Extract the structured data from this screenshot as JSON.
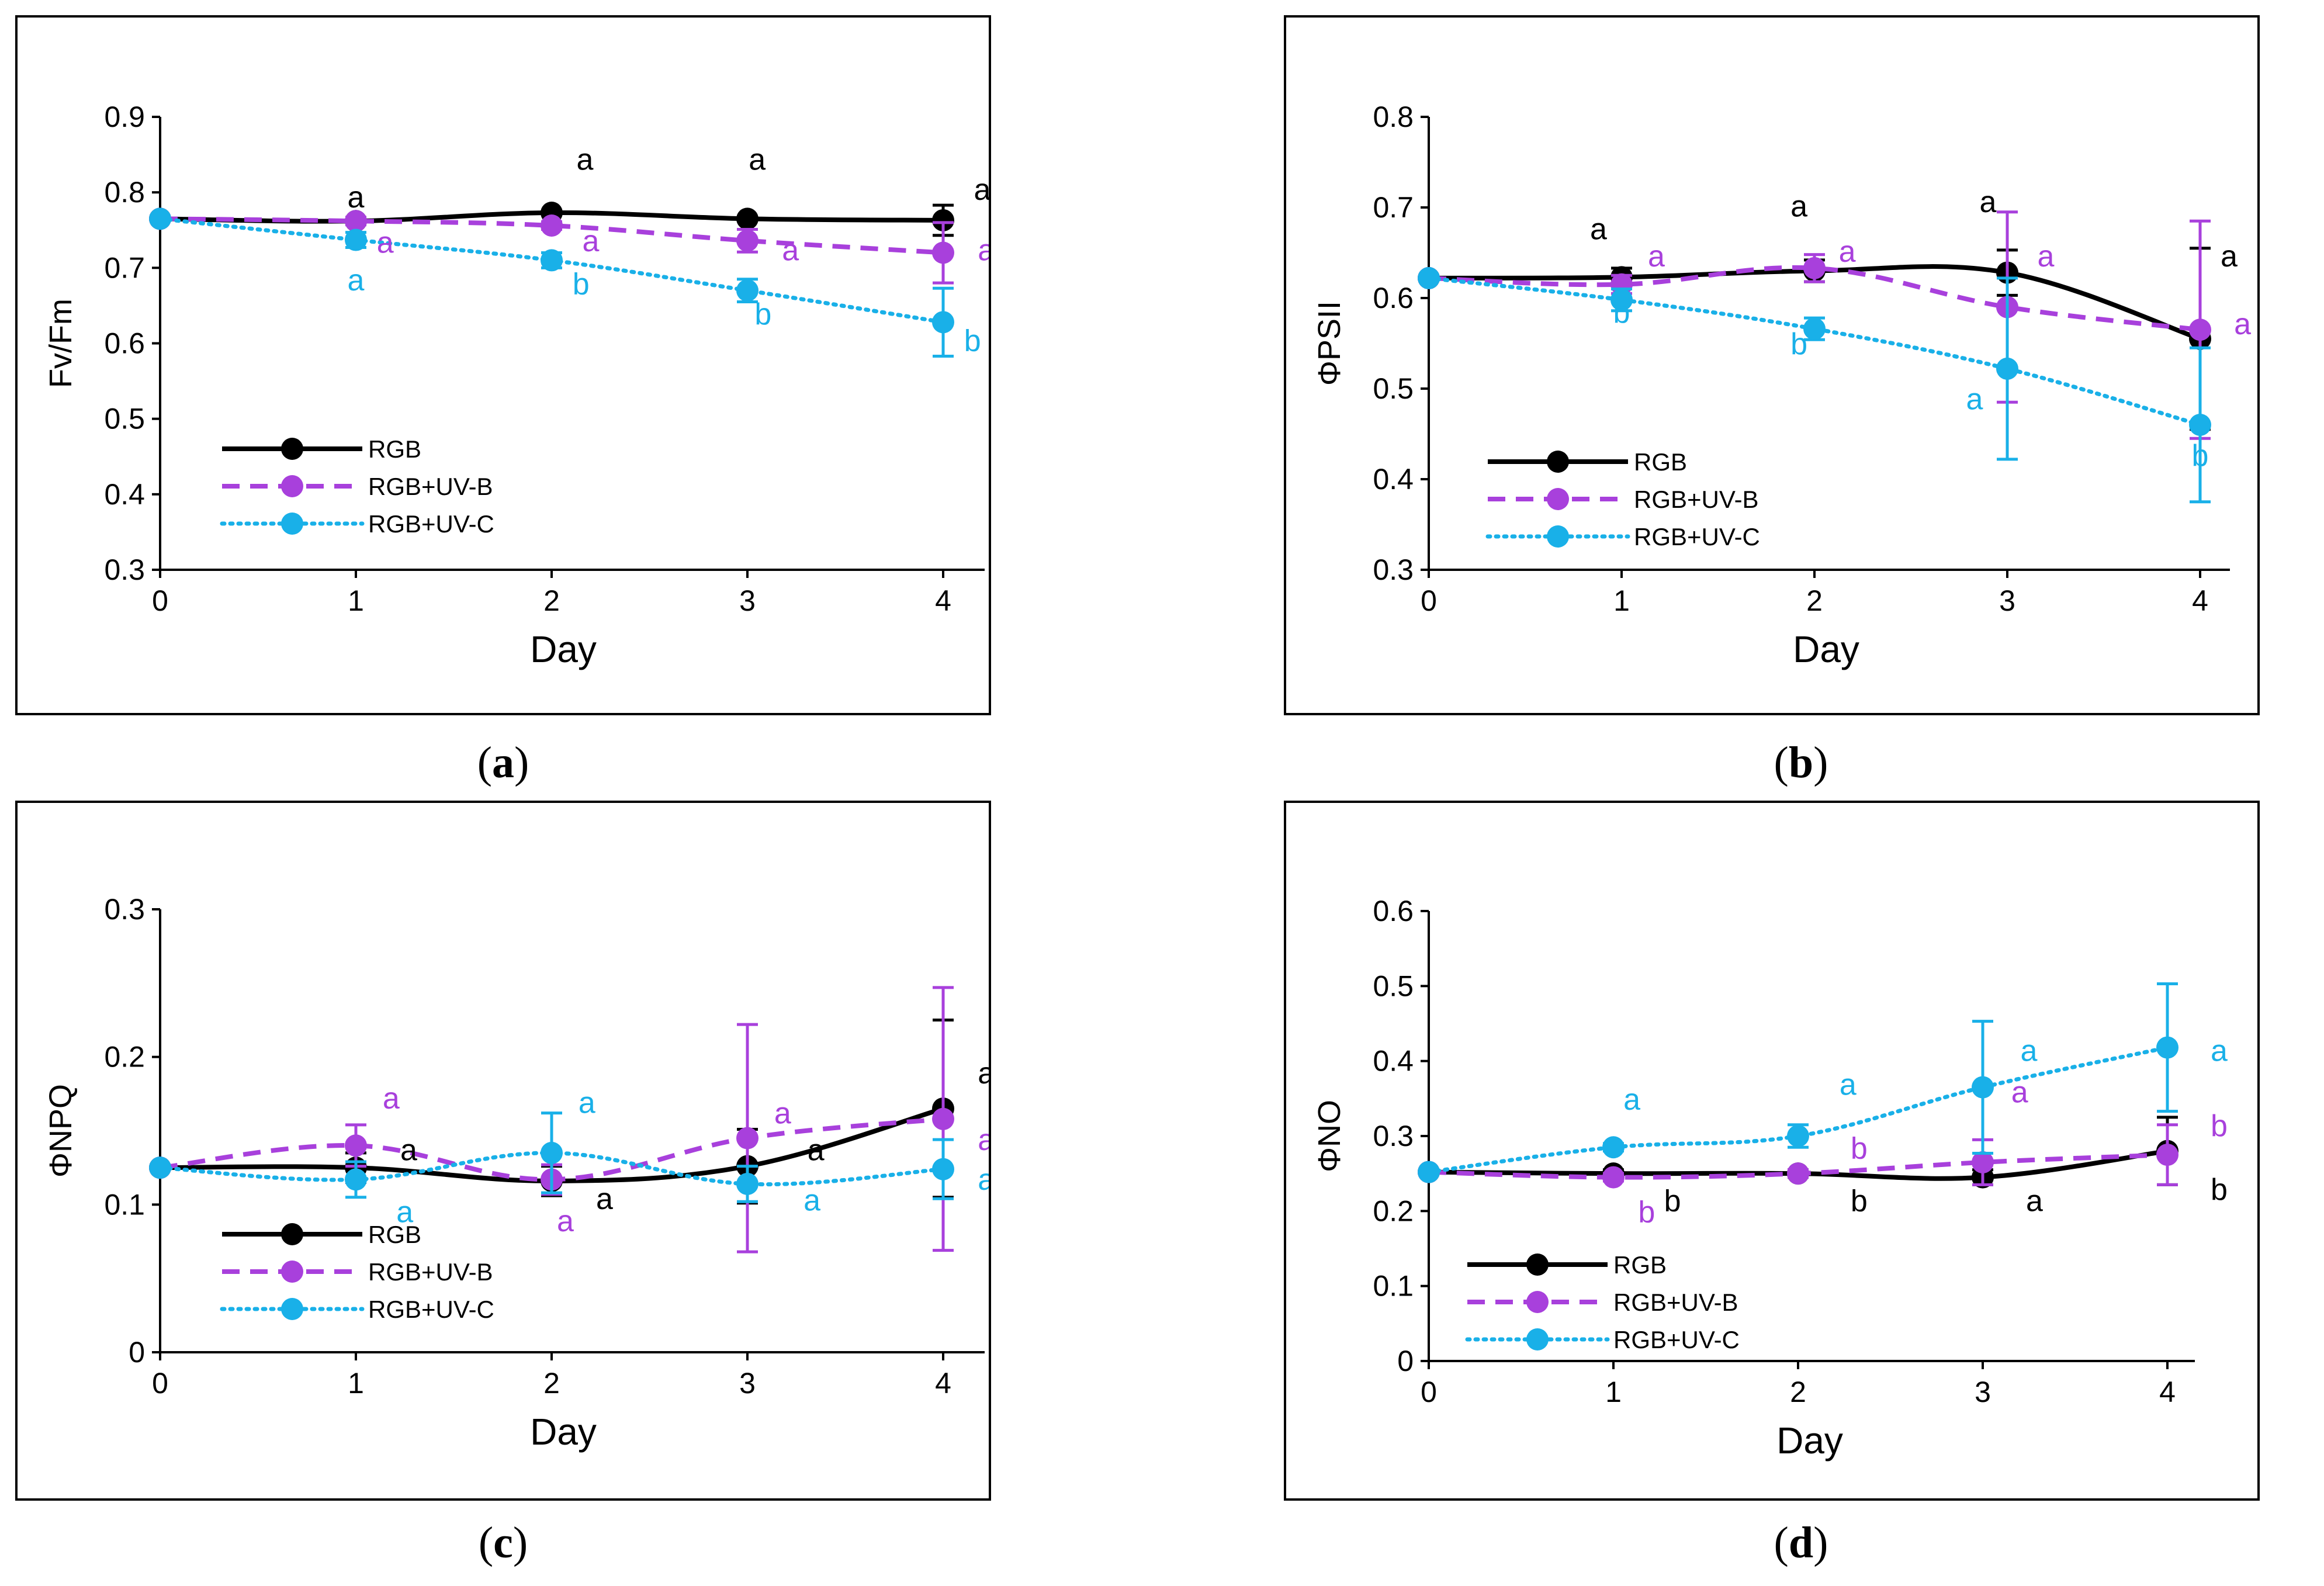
{
  "colors": {
    "RGB": "#000000",
    "RGB+UV-B": "#a840dc",
    "RGB+UV-C": "#19b0e8"
  },
  "chart_data": [
    {
      "type": "line",
      "panel_label": "a",
      "caption": {
        "open": "(",
        "label": "a",
        "close": ")"
      },
      "ylabel": "Fv/Fm",
      "xlabel": "Day",
      "x": [
        0,
        1,
        2,
        3,
        4
      ],
      "ylim": [
        0.3,
        0.9
      ],
      "yticks": [
        0.3,
        0.4,
        0.5,
        0.6,
        0.7,
        0.8,
        0.9
      ],
      "ytick_labels": [
        "0.3",
        "0.4",
        "0.5",
        "0.6",
        "0.7",
        "0.8",
        "0.9"
      ],
      "xtick_labels": [
        "0",
        "1",
        "2",
        "3",
        "4"
      ],
      "legend": [
        "RGB",
        "RGB+UV-B",
        "RGB+UV-C"
      ],
      "series": [
        {
          "name": "RGB",
          "style": "solid",
          "values": [
            0.765,
            0.762,
            0.773,
            0.765,
            0.763
          ],
          "errors": [
            0,
            0,
            0,
            0,
            0.02
          ],
          "letters": [
            "",
            "a",
            "a",
            "a",
            "a"
          ],
          "letter_pos": [
            null,
            [
              1.0,
              0.78
            ],
            [
              2.17,
              0.83
            ],
            [
              3.05,
              0.83
            ],
            [
              4.2,
              0.79
            ]
          ]
        },
        {
          "name": "RGB+UV-B",
          "style": "dashed",
          "values": [
            0.765,
            0.762,
            0.756,
            0.736,
            0.72
          ],
          "errors": [
            0,
            0.005,
            0.005,
            0.015,
            0.04
          ],
          "letters": [
            "",
            "a",
            "a",
            "a",
            "a"
          ],
          "letter_pos": [
            null,
            [
              1.15,
              0.72
            ],
            [
              2.2,
              0.722
            ],
            [
              3.22,
              0.71
            ],
            [
              4.22,
              0.71
            ]
          ]
        },
        {
          "name": "RGB+UV-C",
          "style": "dotted",
          "values": [
            0.765,
            0.737,
            0.71,
            0.67,
            0.628
          ],
          "errors": [
            0,
            0.01,
            0.01,
            0.015,
            0.045
          ],
          "letters": [
            "",
            "a",
            "b",
            "b",
            "b"
          ],
          "letter_pos": [
            null,
            [
              1.0,
              0.67
            ],
            [
              2.15,
              0.665
            ],
            [
              3.08,
              0.625
            ],
            [
              4.15,
              0.59
            ]
          ]
        }
      ]
    },
    {
      "type": "line",
      "panel_label": "b",
      "caption": {
        "open": "(",
        "label": "b",
        "close": ")"
      },
      "ylabel": "ΦPSII",
      "xlabel": "Day",
      "x": [
        0,
        1,
        2,
        3,
        4
      ],
      "ylim": [
        0.3,
        0.8
      ],
      "yticks": [
        0.3,
        0.4,
        0.5,
        0.6,
        0.7,
        0.8
      ],
      "ytick_labels": [
        "0.3",
        "0.4",
        "0.5",
        "0.6",
        "0.7",
        "0.8"
      ],
      "xtick_labels": [
        "0",
        "1",
        "2",
        "3",
        "4"
      ],
      "legend": [
        "RGB",
        "RGB+UV-B",
        "RGB+UV-C"
      ],
      "series": [
        {
          "name": "RGB",
          "style": "solid",
          "values": [
            0.622,
            0.623,
            0.63,
            0.628,
            0.555
          ],
          "errors": [
            0,
            0.01,
            0.012,
            0.025,
            0.1
          ],
          "letters": [
            "",
            "a",
            "a",
            "a",
            "a"
          ],
          "letter_pos": [
            null,
            [
              0.88,
              0.665
            ],
            [
              1.92,
              0.69
            ],
            [
              2.9,
              0.695
            ],
            [
              4.15,
              0.635
            ]
          ]
        },
        {
          "name": "RGB+UV-B",
          "style": "dashed",
          "values": [
            0.622,
            0.615,
            0.633,
            0.59,
            0.565
          ],
          "errors": [
            0,
            0.01,
            0.015,
            0.105,
            0.12
          ],
          "letters": [
            "",
            "a",
            "a",
            "a",
            "a"
          ],
          "letter_pos": [
            null,
            [
              1.18,
              0.635
            ],
            [
              2.17,
              0.64
            ],
            [
              3.2,
              0.635
            ],
            [
              4.22,
              0.56
            ]
          ]
        },
        {
          "name": "RGB+UV-C",
          "style": "dotted",
          "values": [
            0.622,
            0.598,
            0.566,
            0.522,
            0.46
          ],
          "errors": [
            0,
            0.012,
            0.012,
            0.1,
            0.085
          ],
          "letters": [
            "",
            "b",
            "b",
            "a",
            "b"
          ],
          "letter_pos": [
            null,
            [
              1.0,
              0.573
            ],
            [
              1.92,
              0.538
            ],
            [
              2.83,
              0.477
            ],
            [
              4.0,
              0.415
            ]
          ]
        }
      ]
    },
    {
      "type": "line",
      "panel_label": "c",
      "caption": {
        "open": "(",
        "label": "c",
        "close": ")"
      },
      "ylabel": "ΦNPQ",
      "xlabel": "Day",
      "x": [
        0,
        1,
        2,
        3,
        4
      ],
      "ylim": [
        0,
        0.3
      ],
      "yticks": [
        0,
        0.1,
        0.2,
        0.3
      ],
      "ytick_labels": [
        "0",
        "0.1",
        "0.2",
        "0.3"
      ],
      "xtick_labels": [
        "0",
        "1",
        "2",
        "3",
        "4"
      ],
      "legend": [
        "RGB",
        "RGB+UV-B",
        "RGB+UV-C"
      ],
      "series": [
        {
          "name": "RGB",
          "style": "solid",
          "values": [
            0.125,
            0.125,
            0.116,
            0.126,
            0.165
          ],
          "errors": [
            0,
            0.01,
            0.01,
            0.025,
            0.06
          ],
          "letters": [
            "",
            "a",
            "a",
            "a",
            "a"
          ],
          "letter_pos": [
            null,
            [
              1.27,
              0.13
            ],
            [
              2.27,
              0.097
            ],
            [
              3.35,
              0.13
            ],
            [
              4.22,
              0.182
            ]
          ]
        },
        {
          "name": "RGB+UV-B",
          "style": "dashed",
          "values": [
            0.125,
            0.14,
            0.117,
            0.145,
            0.158
          ],
          "errors": [
            0,
            0.014,
            0.01,
            0.077,
            0.089
          ],
          "letters": [
            "",
            "a",
            "a",
            "a",
            "a"
          ],
          "letter_pos": [
            null,
            [
              1.18,
              0.165
            ],
            [
              2.07,
              0.082
            ],
            [
              3.18,
              0.155
            ],
            [
              4.22,
              0.137
            ]
          ]
        },
        {
          "name": "RGB+UV-C",
          "style": "dotted",
          "values": [
            0.125,
            0.117,
            0.135,
            0.114,
            0.124
          ],
          "errors": [
            0,
            0.012,
            0.027,
            0.012,
            0.02
          ],
          "letters": [
            "",
            "a",
            "a",
            "a",
            "a"
          ],
          "letter_pos": [
            null,
            [
              1.25,
              0.088
            ],
            [
              2.18,
              0.162
            ],
            [
              3.33,
              0.096
            ],
            [
              4.22,
              0.11
            ]
          ]
        }
      ]
    },
    {
      "type": "line",
      "panel_label": "d",
      "caption": {
        "open": "(",
        "label": "d",
        "close": ")"
      },
      "ylabel": "ΦNO",
      "xlabel": "Day",
      "x": [
        0,
        1,
        2,
        3,
        4
      ],
      "ylim": [
        0,
        0.6
      ],
      "yticks": [
        0,
        0.1,
        0.2,
        0.3,
        0.4,
        0.5,
        0.6
      ],
      "ytick_labels": [
        "0",
        "0.1",
        "0.2",
        "0.3",
        "0.4",
        "0.5",
        "0.6"
      ],
      "xtick_labels": [
        "0",
        "1",
        "2",
        "3",
        "4"
      ],
      "legend": [
        "RGB",
        "RGB+UV-B",
        "RGB+UV-C"
      ],
      "series": [
        {
          "name": "RGB",
          "style": "solid",
          "values": [
            0.252,
            0.25,
            0.25,
            0.245,
            0.28
          ],
          "errors": [
            0,
            0.005,
            0.005,
            0.01,
            0.045
          ],
          "letters": [
            "",
            "b",
            "b",
            "a",
            "b"
          ],
          "letter_pos": [
            null,
            [
              1.32,
              0.2
            ],
            [
              2.33,
              0.2
            ],
            [
              3.28,
              0.2
            ],
            [
              4.28,
              0.215
            ]
          ]
        },
        {
          "name": "RGB+UV-B",
          "style": "dashed",
          "values": [
            0.252,
            0.245,
            0.25,
            0.265,
            0.275
          ],
          "errors": [
            0,
            0.005,
            0.005,
            0.03,
            0.04
          ],
          "letters": [
            "",
            "b",
            "b",
            "a",
            "b"
          ],
          "letter_pos": [
            null,
            [
              1.18,
              0.185
            ],
            [
              2.33,
              0.27
            ],
            [
              3.2,
              0.345
            ],
            [
              4.28,
              0.3
            ]
          ]
        },
        {
          "name": "RGB+UV-C",
          "style": "dotted",
          "values": [
            0.252,
            0.285,
            0.3,
            0.365,
            0.418
          ],
          "errors": [
            0,
            0.005,
            0.015,
            0.088,
            0.085
          ],
          "letters": [
            "",
            "a",
            "a",
            "a",
            "a"
          ],
          "letter_pos": [
            null,
            [
              1.1,
              0.335
            ],
            [
              2.27,
              0.355
            ],
            [
              3.25,
              0.4
            ],
            [
              4.28,
              0.4
            ]
          ]
        }
      ]
    }
  ]
}
